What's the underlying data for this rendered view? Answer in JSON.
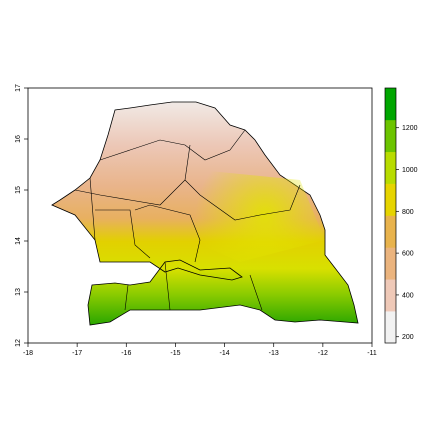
{
  "chart_data": {
    "type": "raster",
    "xlim": [
      -18,
      -11
    ],
    "xticks": [
      -18,
      -17,
      -16,
      -15,
      -14,
      -13,
      -12,
      -11
    ],
    "ylim": [
      12,
      17
    ],
    "yticks": [
      12,
      13,
      14,
      15,
      16,
      17
    ],
    "legend": {
      "lim": [
        170,
        1390
      ],
      "ticks": [
        200,
        400,
        600,
        800,
        1000,
        1200
      ],
      "colors": [
        "#f2f2f2",
        "#efc9b8",
        "#ebb47e",
        "#e8b34d",
        "#e6d400",
        "#b8dc00",
        "#6cc400",
        "#00a600"
      ]
    }
  }
}
